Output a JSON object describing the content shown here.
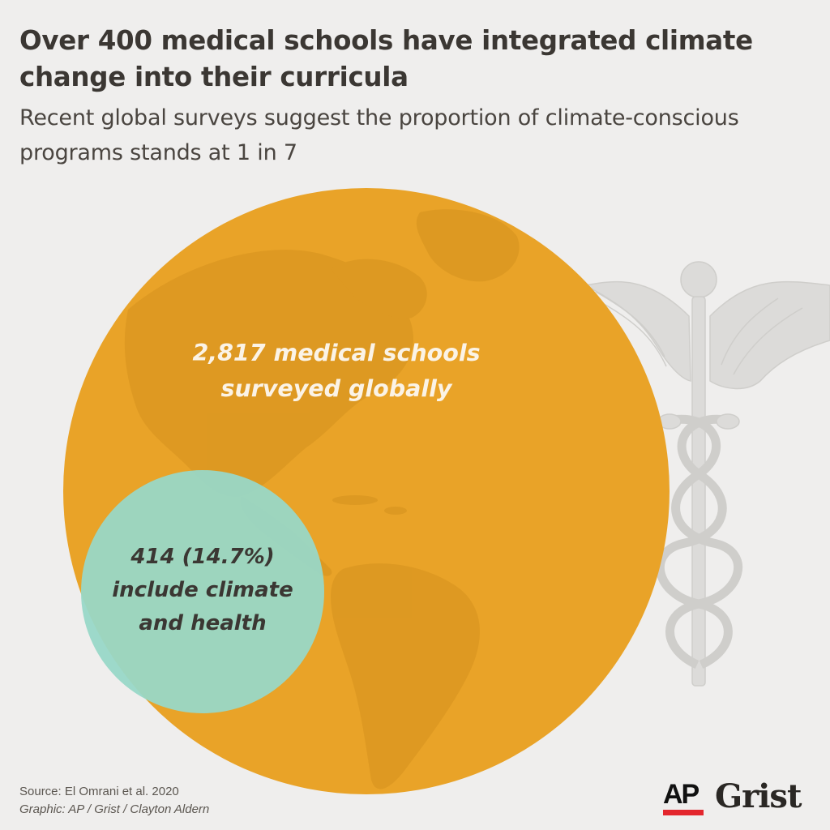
{
  "title": "Over 400 medical schools have integrated climate change into their curricula",
  "subtitle": "Recent global surveys suggest the proportion of climate-conscious programs stands at 1 in 7",
  "chart_data": {
    "type": "proportional-area",
    "circles": [
      {
        "value": 2817,
        "label": "2,817 medical schools surveyed globally",
        "color": "#e9a328"
      },
      {
        "value": 414,
        "percent": 14.7,
        "label": "414 (14.7%) include climate and health",
        "color": "#98d8c8"
      }
    ]
  },
  "big_label": [
    "2,817 medical schools",
    "surveyed globally"
  ],
  "small_label": [
    "414 (14.7%)",
    "include climate",
    "and health"
  ],
  "footer": {
    "source": "Source: El Omrani et al. 2020",
    "credit": "Graphic: AP / Grist / Clayton Aldern"
  },
  "logos": {
    "ap": "AP",
    "grist": "Grist",
    "ap_accent": "#e3262d"
  },
  "icons": [
    "globe-map-texture",
    "caduceus-icon"
  ]
}
